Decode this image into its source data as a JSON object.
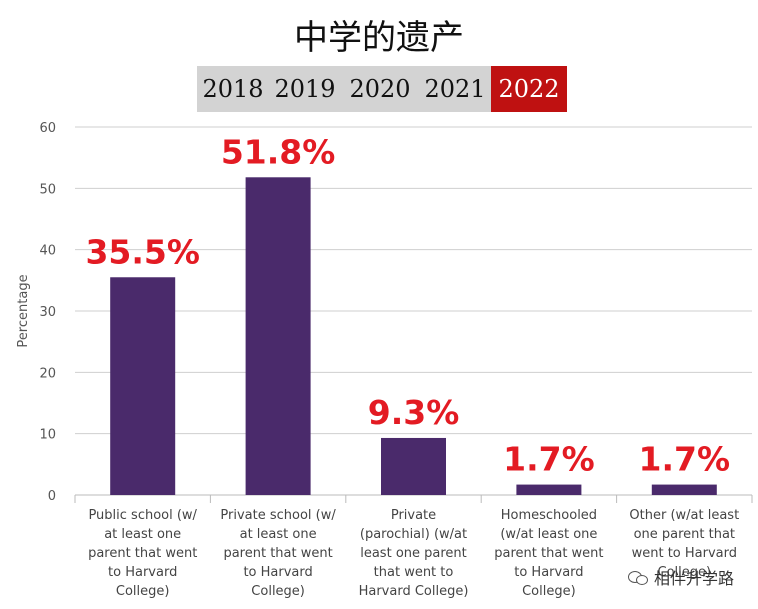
{
  "title": "中学的遗产",
  "years": [
    {
      "label": "2018",
      "active": false
    },
    {
      "label": "2019",
      "active": false
    },
    {
      "label": "2020",
      "active": false
    },
    {
      "label": "2021",
      "active": false
    },
    {
      "label": "2022",
      "active": true
    }
  ],
  "colors": {
    "bar": "#4a2a6b",
    "data_label": "#e31b23",
    "grid": "#cfcfcf",
    "axis_text": "#555555",
    "active_tab": "#bf1111"
  },
  "watermark": "相伴升学路",
  "chart_data": {
    "type": "bar",
    "ylabel": "Percentage",
    "ylim": [
      0,
      60
    ],
    "yticks": [
      0,
      10,
      20,
      30,
      40,
      50,
      60
    ],
    "grid": true,
    "categories": [
      [
        "Public school (w/",
        "at least one",
        "parent that went",
        "to Harvard",
        "College)"
      ],
      [
        "Private school (w/",
        "at least one",
        "parent that went",
        "to Harvard",
        "College)"
      ],
      [
        "Private",
        "(parochial) (w/at",
        "least one parent",
        "that went to",
        "Harvard College)"
      ],
      [
        "Homeschooled",
        "(w/at least one",
        "parent that went",
        "to Harvard",
        "College)"
      ],
      [
        "Other (w/at least",
        "one parent that",
        "went to Harvard",
        "College)"
      ]
    ],
    "values": [
      35.5,
      51.8,
      9.3,
      1.7,
      1.7
    ],
    "data_labels": [
      "35.5%",
      "51.8%",
      "9.3%",
      "1.7%",
      "1.7%"
    ]
  }
}
